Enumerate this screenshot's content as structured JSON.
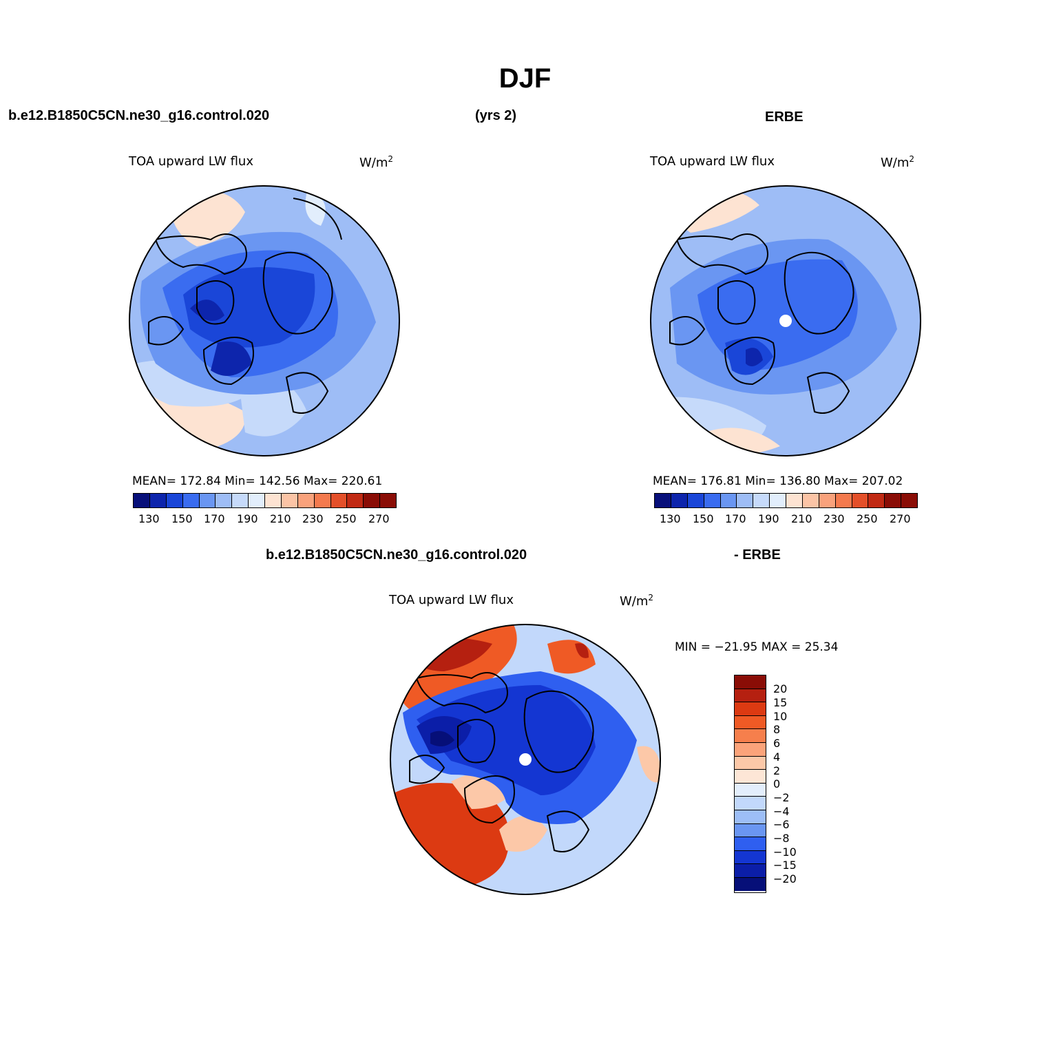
{
  "title": "DJF",
  "top_left_case": "b.e12.B1850C5CN.ne30_g16.control.020",
  "top_center": "(yrs 2)",
  "top_right_case": "ERBE",
  "panel_left": {
    "variable": "TOA upward LW flux",
    "units": "W/m",
    "units_sup": "2",
    "stats": "MEAN= 172.84   Min= 142.56   Max= 220.61",
    "ticks": [
      "130",
      "150",
      "170",
      "190",
      "210",
      "230",
      "250",
      "270"
    ]
  },
  "panel_right": {
    "variable": "TOA upward LW flux",
    "units": "W/m",
    "units_sup": "2",
    "stats": "MEAN= 176.81   Min= 136.80   Max= 207.02",
    "ticks": [
      "130",
      "150",
      "170",
      "190",
      "210",
      "230",
      "250",
      "270"
    ]
  },
  "diff_case": "b.e12.B1850C5CN.ne30_g16.control.020",
  "diff_minus": "- ERBE",
  "panel_diff": {
    "variable": "TOA upward LW flux",
    "units": "W/m",
    "units_sup": "2",
    "stats": "MIN = −21.95 MAX =  25.34",
    "ticks": [
      "20",
      "15",
      "10",
      "8",
      "6",
      "4",
      "2",
      "0",
      "−2",
      "−4",
      "−6",
      "−8",
      "−10",
      "−15",
      "−20"
    ]
  },
  "colors": {
    "abs_scale": [
      "#08107a",
      "#0d25ac",
      "#1a46d8",
      "#3a6cf0",
      "#6a96f2",
      "#9ebdf6",
      "#c6dafa",
      "#e2eefc",
      "#fde3d2",
      "#fbc4a6",
      "#f9a27c",
      "#f47a4e",
      "#e4502a",
      "#c12a14",
      "#8a0d06"
    ],
    "diff_scale": [
      "#8a0d06",
      "#b52010",
      "#dc3a12",
      "#ef5a25",
      "#f67f4c",
      "#fba37a",
      "#fcc8a8",
      "#fde6d6",
      "#e3eefc",
      "#c2d8fb",
      "#9dbef7",
      "#6a96f2",
      "#2f5ff0",
      "#1436d2",
      "#0b1ea8",
      "#060f78"
    ]
  }
}
